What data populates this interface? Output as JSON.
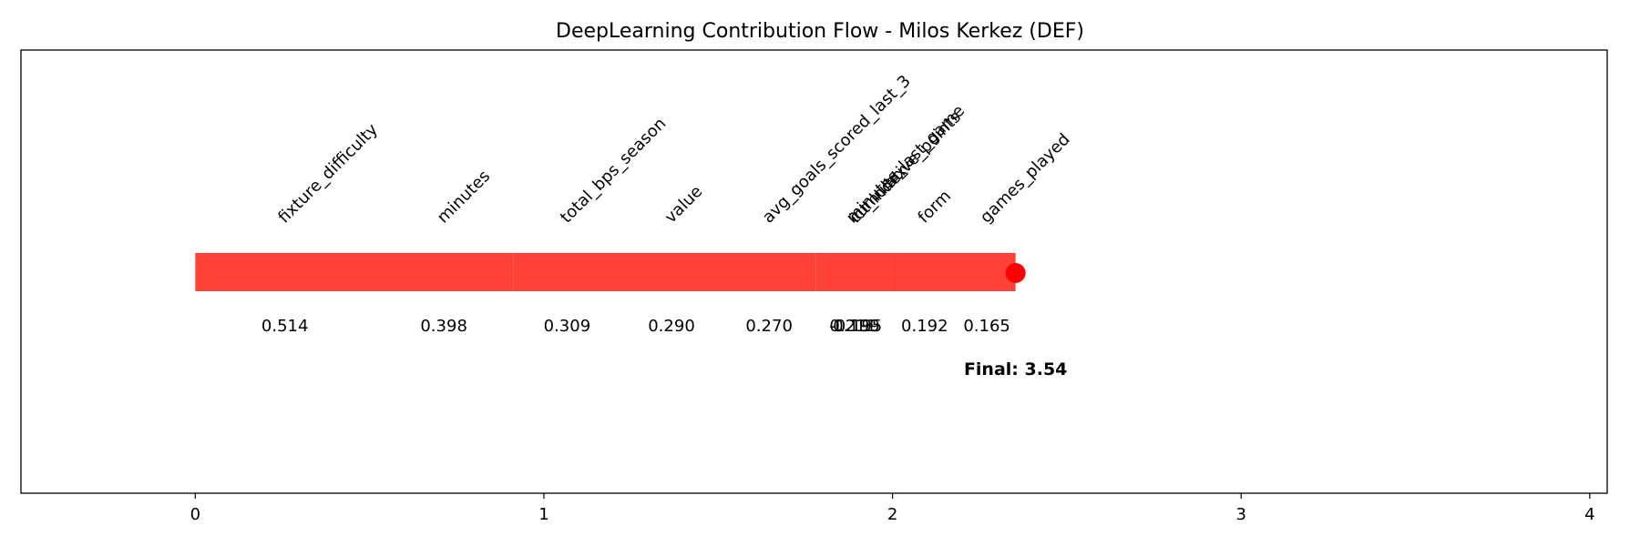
{
  "chart_data": {
    "type": "bar",
    "title": "DeepLearning Contribution Flow - Milos Kerkez (DEF)",
    "xlabel": "",
    "ylabel": "",
    "xlim": [
      -0.5,
      4.05
    ],
    "xticks": [
      0,
      1,
      2,
      3,
      4
    ],
    "grid": false,
    "base_value": 0,
    "features": [
      {
        "name": "fixture_difficulty",
        "value": 0.514,
        "label": "0.514"
      },
      {
        "name": "minutes",
        "value": 0.398,
        "label": "0.398"
      },
      {
        "name": "total_bps_season",
        "value": 0.309,
        "label": "0.309"
      },
      {
        "name": "value",
        "value": 0.29,
        "label": "0.290"
      },
      {
        "name": "avg_goals_scored_last_3",
        "value": 0.27,
        "label": "0.270"
      },
      {
        "name": "minutes_last_game",
        "value": 0.211,
        "label": "0.211"
      },
      {
        "name": "cumulative_points",
        "value": -0.195,
        "label": "-0.195"
      },
      {
        "name": "ict_index",
        "value": 0.199,
        "label": "0.199"
      },
      {
        "name": "form",
        "value": 0.192,
        "label": "0.192"
      },
      {
        "name": "games_played",
        "value": 0.165,
        "label": "0.165"
      }
    ],
    "final_label": "Final: 3.54",
    "colors": {
      "positive": "#ff4136",
      "negative": "#0074d9",
      "marker": "#ff0000"
    }
  }
}
